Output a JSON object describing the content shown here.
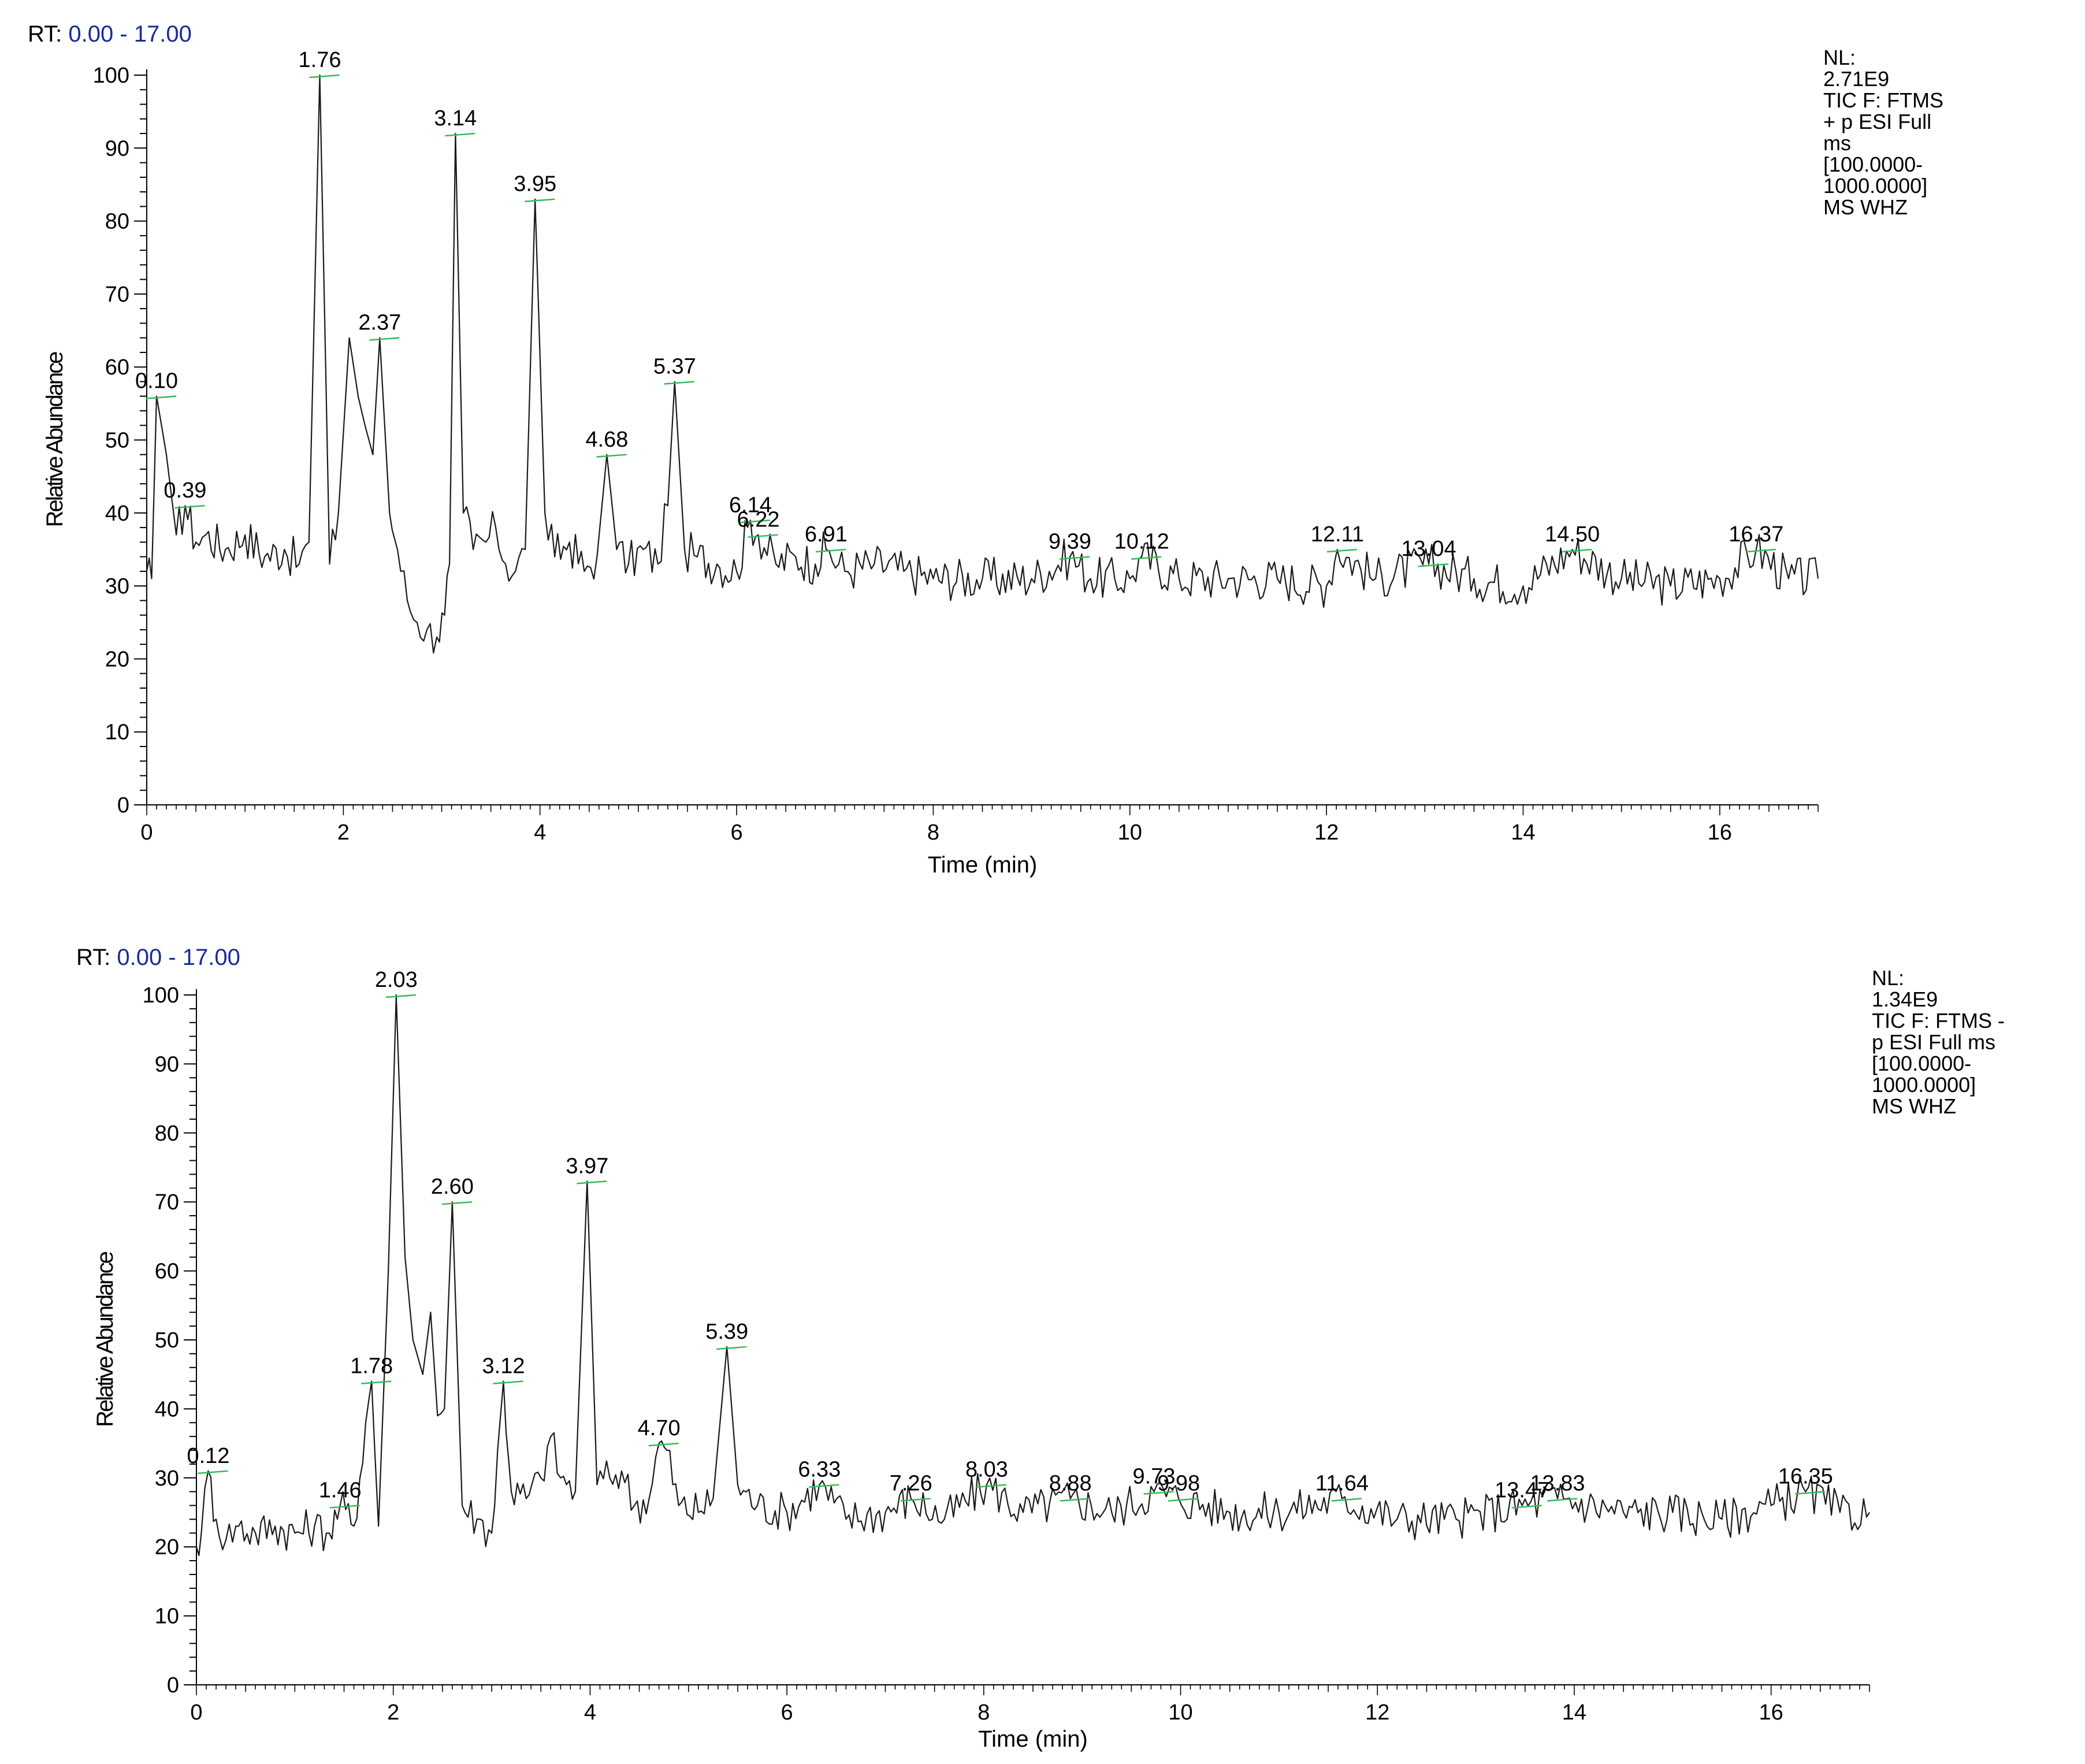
{
  "chart_data": [
    {
      "type": "line",
      "rt_label": "RT:",
      "rt_range": "0.00 - 17.00",
      "ylabel": "Relative Abundance",
      "xlabel": "Time (min)",
      "xlim": [
        0,
        17
      ],
      "ylim": [
        0,
        100
      ],
      "x_ticks": [
        0,
        2,
        4,
        6,
        8,
        10,
        12,
        14,
        16
      ],
      "y_ticks": [
        0,
        10,
        20,
        30,
        40,
        50,
        60,
        70,
        80,
        90,
        100
      ],
      "info_lines": [
        "NL:",
        "2.71E9",
        "TIC F: FTMS",
        "+ p ESI Full",
        "ms",
        "[100.0000-",
        "1000.0000]",
        "MS WHZ"
      ],
      "peaks": [
        {
          "x": 0.1,
          "y": 56,
          "label": "0.10"
        },
        {
          "x": 0.39,
          "y": 41,
          "label": "0.39"
        },
        {
          "x": 1.76,
          "y": 100,
          "label": "1.76"
        },
        {
          "x": 2.06,
          "y": 64
        },
        {
          "x": 2.37,
          "y": 64,
          "label": "2.37"
        },
        {
          "x": 3.14,
          "y": 92,
          "label": "3.14"
        },
        {
          "x": 3.95,
          "y": 83,
          "label": "3.95"
        },
        {
          "x": 4.68,
          "y": 48,
          "label": "4.68"
        },
        {
          "x": 5.37,
          "y": 58,
          "label": "5.37"
        },
        {
          "x": 6.14,
          "y": 39,
          "label": "6.14"
        },
        {
          "x": 6.22,
          "y": 37,
          "label": "6.22"
        },
        {
          "x": 6.91,
          "y": 35,
          "label": "6.91"
        },
        {
          "x": 9.39,
          "y": 34,
          "label": "9.39"
        },
        {
          "x": 10.12,
          "y": 34,
          "label": "10.12"
        },
        {
          "x": 12.11,
          "y": 35,
          "label": "12.11"
        },
        {
          "x": 13.04,
          "y": 33,
          "label": "13.04"
        },
        {
          "x": 14.5,
          "y": 35,
          "label": "14.50"
        },
        {
          "x": 16.37,
          "y": 35,
          "label": "16.37"
        }
      ],
      "baseline": [
        [
          0,
          32
        ],
        [
          0.05,
          31
        ],
        [
          0.1,
          56
        ],
        [
          0.2,
          48
        ],
        [
          0.3,
          37
        ],
        [
          0.39,
          41
        ],
        [
          0.5,
          36
        ],
        [
          0.6,
          37
        ],
        [
          0.8,
          35
        ],
        [
          1.0,
          37
        ],
        [
          1.2,
          34
        ],
        [
          1.4,
          35
        ],
        [
          1.55,
          33
        ],
        [
          1.65,
          36
        ],
        [
          1.76,
          100
        ],
        [
          1.86,
          33
        ],
        [
          1.95,
          40
        ],
        [
          2.06,
          64
        ],
        [
          2.15,
          56
        ],
        [
          2.22,
          52
        ],
        [
          2.3,
          48
        ],
        [
          2.37,
          64
        ],
        [
          2.47,
          40
        ],
        [
          2.55,
          35
        ],
        [
          2.65,
          28
        ],
        [
          2.75,
          25
        ],
        [
          2.85,
          24
        ],
        [
          2.95,
          23
        ],
        [
          3.03,
          26
        ],
        [
          3.08,
          33
        ],
        [
          3.14,
          92
        ],
        [
          3.22,
          40
        ],
        [
          3.32,
          35
        ],
        [
          3.45,
          36
        ],
        [
          3.55,
          38
        ],
        [
          3.65,
          33
        ],
        [
          3.75,
          32
        ],
        [
          3.85,
          35
        ],
        [
          3.95,
          83
        ],
        [
          4.05,
          40
        ],
        [
          4.15,
          34
        ],
        [
          4.3,
          36
        ],
        [
          4.45,
          32
        ],
        [
          4.58,
          34
        ],
        [
          4.68,
          48
        ],
        [
          4.78,
          35
        ],
        [
          4.9,
          33
        ],
        [
          5.05,
          35
        ],
        [
          5.2,
          33
        ],
        [
          5.3,
          41
        ],
        [
          5.37,
          58
        ],
        [
          5.47,
          35
        ],
        [
          5.6,
          34
        ],
        [
          5.8,
          33
        ],
        [
          6.0,
          32
        ],
        [
          6.14,
          39
        ],
        [
          6.22,
          37
        ],
        [
          6.4,
          33
        ],
        [
          6.6,
          34
        ],
        [
          6.8,
          33
        ],
        [
          6.91,
          35
        ],
        [
          7.1,
          32
        ],
        [
          7.4,
          33
        ],
        [
          7.7,
          32
        ],
        [
          8.0,
          31
        ],
        [
          8.5,
          31
        ],
        [
          9.0,
          31
        ],
        [
          9.39,
          34
        ],
        [
          9.6,
          31
        ],
        [
          10.0,
          31
        ],
        [
          10.12,
          34
        ],
        [
          10.5,
          31
        ],
        [
          11.0,
          31
        ],
        [
          11.5,
          31
        ],
        [
          12.0,
          30
        ],
        [
          12.11,
          35
        ],
        [
          12.5,
          31
        ],
        [
          13.04,
          33
        ],
        [
          13.5,
          31
        ],
        [
          14.0,
          30
        ],
        [
          14.5,
          35
        ],
        [
          15.0,
          31
        ],
        [
          15.5,
          30
        ],
        [
          16.0,
          31
        ],
        [
          16.37,
          35
        ],
        [
          16.7,
          31
        ],
        [
          17.0,
          31
        ]
      ]
    },
    {
      "type": "line",
      "rt_label": "RT:",
      "rt_range": "0.00 - 17.00",
      "ylabel": "Relative Abundance",
      "xlabel": "Time (min)",
      "xlim": [
        0,
        17
      ],
      "ylim": [
        0,
        100
      ],
      "x_ticks": [
        0,
        2,
        4,
        6,
        8,
        10,
        12,
        14,
        16
      ],
      "y_ticks": [
        0,
        10,
        20,
        30,
        40,
        50,
        60,
        70,
        80,
        90,
        100
      ],
      "info_lines": [
        "NL:",
        "1.34E9",
        "TIC F: FTMS -",
        "p ESI Full ms",
        "[100.0000-",
        "1000.0000]",
        "MS WHZ"
      ],
      "peaks": [
        {
          "x": 0.12,
          "y": 31,
          "label": "0.12"
        },
        {
          "x": 1.46,
          "y": 26,
          "label": "1.46"
        },
        {
          "x": 1.78,
          "y": 44,
          "label": "1.78"
        },
        {
          "x": 2.03,
          "y": 100,
          "label": "2.03"
        },
        {
          "x": 2.6,
          "y": 70,
          "label": "2.60"
        },
        {
          "x": 3.12,
          "y": 44,
          "label": "3.12"
        },
        {
          "x": 3.97,
          "y": 73,
          "label": "3.97"
        },
        {
          "x": 4.7,
          "y": 35,
          "label": "4.70"
        },
        {
          "x": 5.39,
          "y": 49,
          "label": "5.39"
        },
        {
          "x": 6.33,
          "y": 29,
          "label": "6.33"
        },
        {
          "x": 7.26,
          "y": 27,
          "label": "7.26"
        },
        {
          "x": 8.03,
          "y": 29,
          "label": "8.03"
        },
        {
          "x": 8.88,
          "y": 27,
          "label": "8.88"
        },
        {
          "x": 9.73,
          "y": 28,
          "label": "9.73"
        },
        {
          "x": 9.98,
          "y": 27,
          "label": "9.98"
        },
        {
          "x": 11.64,
          "y": 27,
          "label": "11.64"
        },
        {
          "x": 13.47,
          "y": 26,
          "label": "13.47"
        },
        {
          "x": 13.83,
          "y": 27,
          "label": "13.83"
        },
        {
          "x": 16.35,
          "y": 28,
          "label": "16.35"
        }
      ],
      "baseline": [
        [
          0,
          20
        ],
        [
          0.05,
          22
        ],
        [
          0.12,
          31
        ],
        [
          0.2,
          24
        ],
        [
          0.3,
          21
        ],
        [
          0.4,
          23
        ],
        [
          0.6,
          22
        ],
        [
          0.8,
          23
        ],
        [
          1.0,
          22
        ],
        [
          1.2,
          23
        ],
        [
          1.35,
          22
        ],
        [
          1.46,
          26
        ],
        [
          1.6,
          23
        ],
        [
          1.72,
          38
        ],
        [
          1.78,
          44
        ],
        [
          1.85,
          23
        ],
        [
          1.95,
          60
        ],
        [
          2.03,
          100
        ],
        [
          2.12,
          62
        ],
        [
          2.2,
          50
        ],
        [
          2.3,
          45
        ],
        [
          2.38,
          54
        ],
        [
          2.45,
          39
        ],
        [
          2.52,
          40
        ],
        [
          2.6,
          70
        ],
        [
          2.7,
          26
        ],
        [
          2.85,
          24
        ],
        [
          3.0,
          22
        ],
        [
          3.12,
          44
        ],
        [
          3.2,
          28
        ],
        [
          3.35,
          27
        ],
        [
          3.5,
          30
        ],
        [
          3.6,
          36
        ],
        [
          3.7,
          30
        ],
        [
          3.85,
          28
        ],
        [
          3.97,
          73
        ],
        [
          4.07,
          29
        ],
        [
          4.2,
          30
        ],
        [
          4.32,
          31
        ],
        [
          4.45,
          26
        ],
        [
          4.6,
          27
        ],
        [
          4.7,
          35
        ],
        [
          4.78,
          34
        ],
        [
          4.9,
          26
        ],
        [
          5.1,
          25
        ],
        [
          5.25,
          27
        ],
        [
          5.39,
          49
        ],
        [
          5.5,
          29
        ],
        [
          5.7,
          26
        ],
        [
          6.0,
          25
        ],
        [
          6.33,
          29
        ],
        [
          6.6,
          24
        ],
        [
          7.0,
          25
        ],
        [
          7.26,
          27
        ],
        [
          7.6,
          24
        ],
        [
          8.03,
          29
        ],
        [
          8.4,
          25
        ],
        [
          8.88,
          27
        ],
        [
          9.3,
          25
        ],
        [
          9.73,
          28
        ],
        [
          9.98,
          27
        ],
        [
          10.5,
          25
        ],
        [
          11.0,
          25
        ],
        [
          11.64,
          27
        ],
        [
          12.2,
          24
        ],
        [
          12.8,
          24
        ],
        [
          13.47,
          26
        ],
        [
          13.83,
          27
        ],
        [
          14.5,
          25
        ],
        [
          15.0,
          25
        ],
        [
          15.5,
          24
        ],
        [
          16.0,
          26
        ],
        [
          16.35,
          28
        ],
        [
          16.7,
          25
        ],
        [
          17.0,
          25
        ]
      ]
    }
  ]
}
